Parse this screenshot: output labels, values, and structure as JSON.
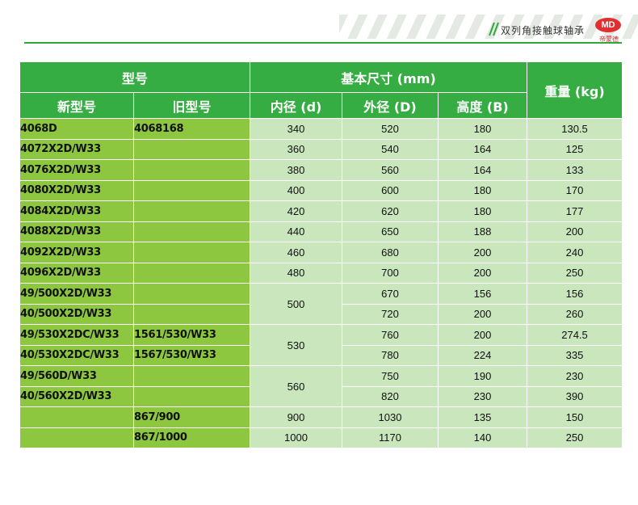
{
  "header": {
    "title": "双列角接触球轴承",
    "logo_text": "MD",
    "logo_name": "帝蒙德",
    "logo_color": "#e03030",
    "accent_color": "#2ea93a"
  },
  "table": {
    "head": {
      "model": "型号",
      "dimensions": "基本尺寸 (mm)",
      "weight": "重量 (kg)",
      "new_model": "新型号",
      "old_model": "旧型号",
      "inner": "内径 (d)",
      "outer": "外径 (D)",
      "height": "高度 (B)"
    },
    "rows": [
      {
        "new": "4068D",
        "old": "4068168",
        "d": "340",
        "D": "520",
        "B": "180",
        "w": "130.5"
      },
      {
        "new": "4072X2D/W33",
        "old": "",
        "d": "360",
        "D": "540",
        "B": "164",
        "w": "125"
      },
      {
        "new": "4076X2D/W33",
        "old": "",
        "d": "380",
        "D": "560",
        "B": "164",
        "w": "133"
      },
      {
        "new": "4080X2D/W33",
        "old": "",
        "d": "400",
        "D": "600",
        "B": "180",
        "w": "170"
      },
      {
        "new": "4084X2D/W33",
        "old": "",
        "d": "420",
        "D": "620",
        "B": "180",
        "w": "177"
      },
      {
        "new": "4088X2D/W33",
        "old": "",
        "d": "440",
        "D": "650",
        "B": "188",
        "w": "200"
      },
      {
        "new": "4092X2D/W33",
        "old": "",
        "d": "460",
        "D": "680",
        "B": "200",
        "w": "240"
      },
      {
        "new": "4096X2D/W33",
        "old": "",
        "d": "480",
        "D": "700",
        "B": "200",
        "w": "250"
      },
      {
        "new": "49/500X2D/W33",
        "old": "",
        "d": "500",
        "D": "670",
        "B": "156",
        "w": "156"
      },
      {
        "new": "40/500X2D/W33",
        "old": "",
        "D": "720",
        "B": "200",
        "w": "260"
      },
      {
        "new": "49/530X2DC/W33",
        "old": "1561/530/W33",
        "d": "530",
        "D": "760",
        "B": "200",
        "w": "274.5"
      },
      {
        "new": "40/530X2DC/W33",
        "old": "1567/530/W33",
        "D": "780",
        "B": "224",
        "w": "335"
      },
      {
        "new": "49/560D/W33",
        "old": "",
        "d": "560",
        "D": "750",
        "B": "190",
        "w": "230"
      },
      {
        "new": "40/560X2D/W33",
        "old": "",
        "D": "820",
        "B": "230",
        "w": "390"
      },
      {
        "new": "",
        "old": "867/900",
        "d": "900",
        "D": "1030",
        "B": "135",
        "w": "150"
      },
      {
        "new": "",
        "old": "867/1000",
        "d": "1000",
        "D": "1170",
        "B": "140",
        "w": "250"
      }
    ]
  }
}
